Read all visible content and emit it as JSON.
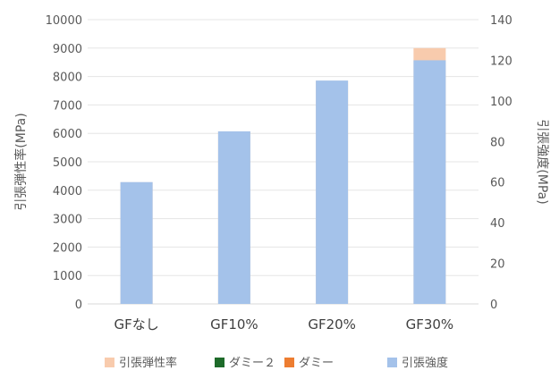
{
  "chart_data": {
    "type": "bar",
    "categories": [
      "GFなし",
      "GF10%",
      "GF20%",
      "GF30%"
    ],
    "series": [
      {
        "name": "引張弾性率",
        "axis": "left",
        "values": [
          4280,
          6070,
          7850,
          9000
        ],
        "color": "#f8cbad"
      },
      {
        "name": "ダミー２",
        "axis": "right",
        "values": [
          0,
          0,
          0,
          0
        ],
        "color": "#1e6b2a"
      },
      {
        "name": "ダミー",
        "axis": "right",
        "values": [
          0,
          0,
          0,
          0
        ],
        "color": "#ed7d31"
      },
      {
        "name": "引張強度",
        "axis": "right",
        "values": [
          60,
          85,
          110,
          120
        ],
        "color": "#a4c2ea"
      }
    ],
    "ylabel": "引張弾性率(MPa)",
    "y2label": "引張強度(MPa)",
    "ylim": [
      0,
      10000
    ],
    "y2lim": [
      0,
      140
    ],
    "yticks": [
      "0",
      "1000",
      "2000",
      "3000",
      "4000",
      "5000",
      "6000",
      "7000",
      "8000",
      "9000",
      "10000"
    ],
    "y2ticks": [
      "0",
      "20",
      "40",
      "60",
      "80",
      "100",
      "120",
      "140"
    ],
    "legend_position": "bottom",
    "grid": true
  }
}
